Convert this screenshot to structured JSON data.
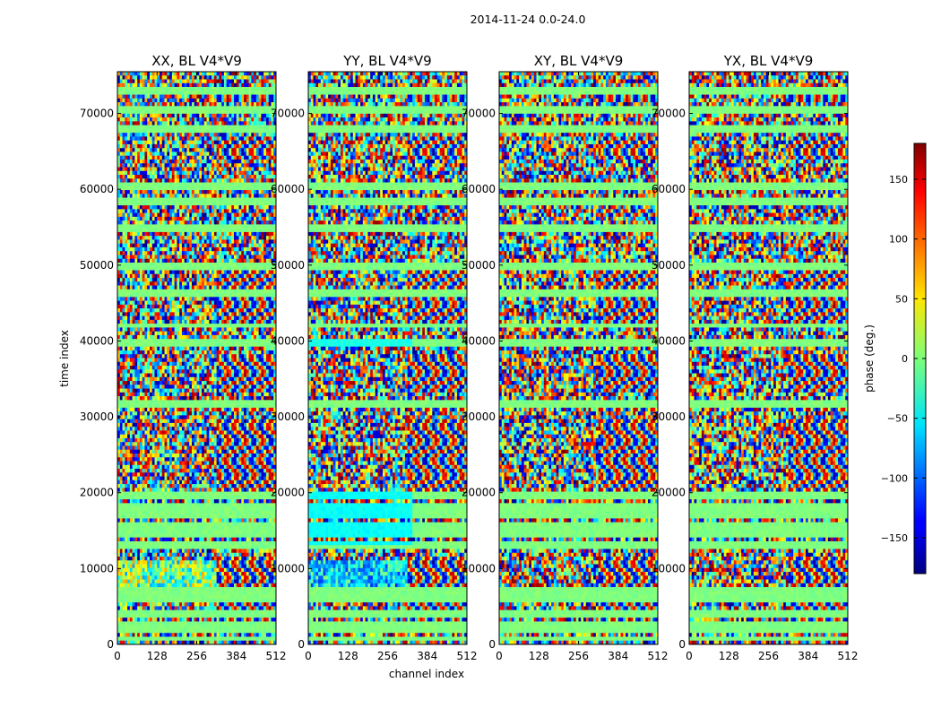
{
  "figure": {
    "suptitle": "2014-11-24 0.0-24.0"
  },
  "chart_data": {
    "type": "heatmap",
    "suptitle": "2014-11-24 0.0-24.0",
    "xlabel": "channel index",
    "ylabel": "time index",
    "xlim": [
      0,
      512
    ],
    "ylim": [
      0,
      75500
    ],
    "xticks": [
      "0",
      "128",
      "256",
      "384",
      "512"
    ],
    "yticks": [
      "0",
      "10000",
      "20000",
      "30000",
      "40000",
      "50000",
      "60000",
      "70000"
    ],
    "colormap": "jet",
    "panels": [
      {
        "title": "XX, BL V4*V9",
        "lowband_tint": "green"
      },
      {
        "title": "YY, BL V4*V9",
        "lowband_tint": "cyan"
      },
      {
        "title": "XY, BL V4*V9",
        "lowband_tint": "noise"
      },
      {
        "title": "YX, BL V4*V9",
        "lowband_tint": "noise"
      }
    ],
    "colorbar": {
      "label": "phase (deg.)",
      "range": [
        -180,
        180
      ],
      "ticks": [
        "150",
        "100",
        "50",
        "0",
        "−50",
        "−100",
        "−150"
      ],
      "tick_values": [
        150,
        100,
        50,
        0,
        -50,
        -100,
        -150
      ]
    },
    "flag_bands_time": [
      800,
      1800,
      2700,
      4200,
      5900,
      7000,
      13000,
      14500,
      15800,
      17200,
      18200,
      19800,
      31700,
      39700,
      42000,
      46500,
      49800,
      55000,
      58200,
      60200,
      68000,
      70600,
      73100
    ],
    "fringe_regions_time": [
      [
        2500,
        6000
      ],
      [
        7500,
        11500
      ],
      [
        14000,
        15000
      ],
      [
        20000,
        29500
      ],
      [
        30800,
        31500
      ],
      [
        33000,
        38500
      ],
      [
        42500,
        49500
      ],
      [
        56500,
        57500
      ],
      [
        64000,
        67000
      ],
      [
        71500,
        72500
      ]
    ],
    "colors": {
      "flag": "#86ff74",
      "cyan": "#37e6ff"
    }
  }
}
